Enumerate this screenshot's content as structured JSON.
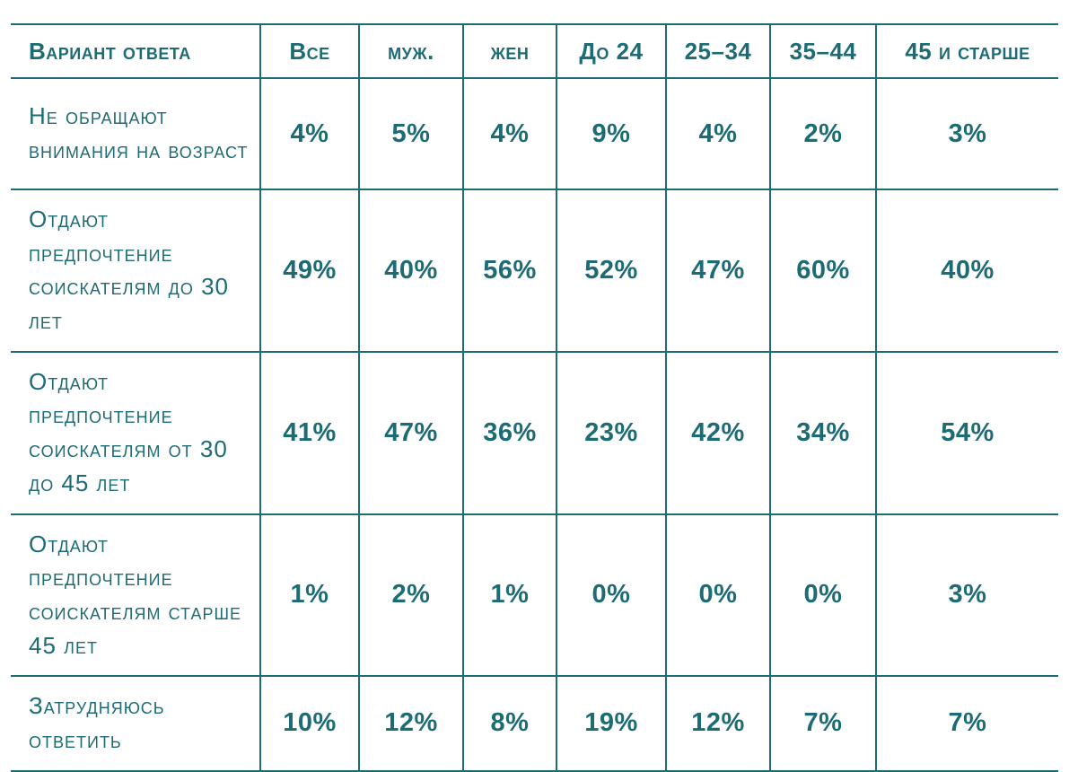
{
  "colors": {
    "accent": "#1d6b75",
    "background": "#ffffff"
  },
  "chart_data": {
    "type": "table",
    "title": "",
    "columns": [
      "Вариант ответа",
      "Все",
      "муж.",
      "жен",
      "До 24",
      "25–34",
      "35–44",
      "45 и старше"
    ],
    "rows": [
      {
        "label": "Не обращают внимания на возраст",
        "values": [
          "4%",
          "5%",
          "4%",
          "9%",
          "4%",
          "2%",
          "3%"
        ]
      },
      {
        "label": "Отдают предпочтение соискателям до 30 лет",
        "values": [
          "49%",
          "40%",
          "56%",
          "52%",
          "47%",
          "60%",
          "40%"
        ]
      },
      {
        "label": "Отдают предпочтение соискателям от 30 до 45 лет",
        "values": [
          "41%",
          "47%",
          "36%",
          "23%",
          "42%",
          "34%",
          "54%"
        ]
      },
      {
        "label": "Отдают предпочтение соискателям старше 45 лет",
        "values": [
          "1%",
          "2%",
          "1%",
          "0%",
          "0%",
          "0%",
          "3%"
        ]
      },
      {
        "label": "Затрудняюсь ответить",
        "values": [
          "10%",
          "12%",
          "8%",
          "19%",
          "12%",
          "7%",
          "7%"
        ]
      }
    ]
  }
}
